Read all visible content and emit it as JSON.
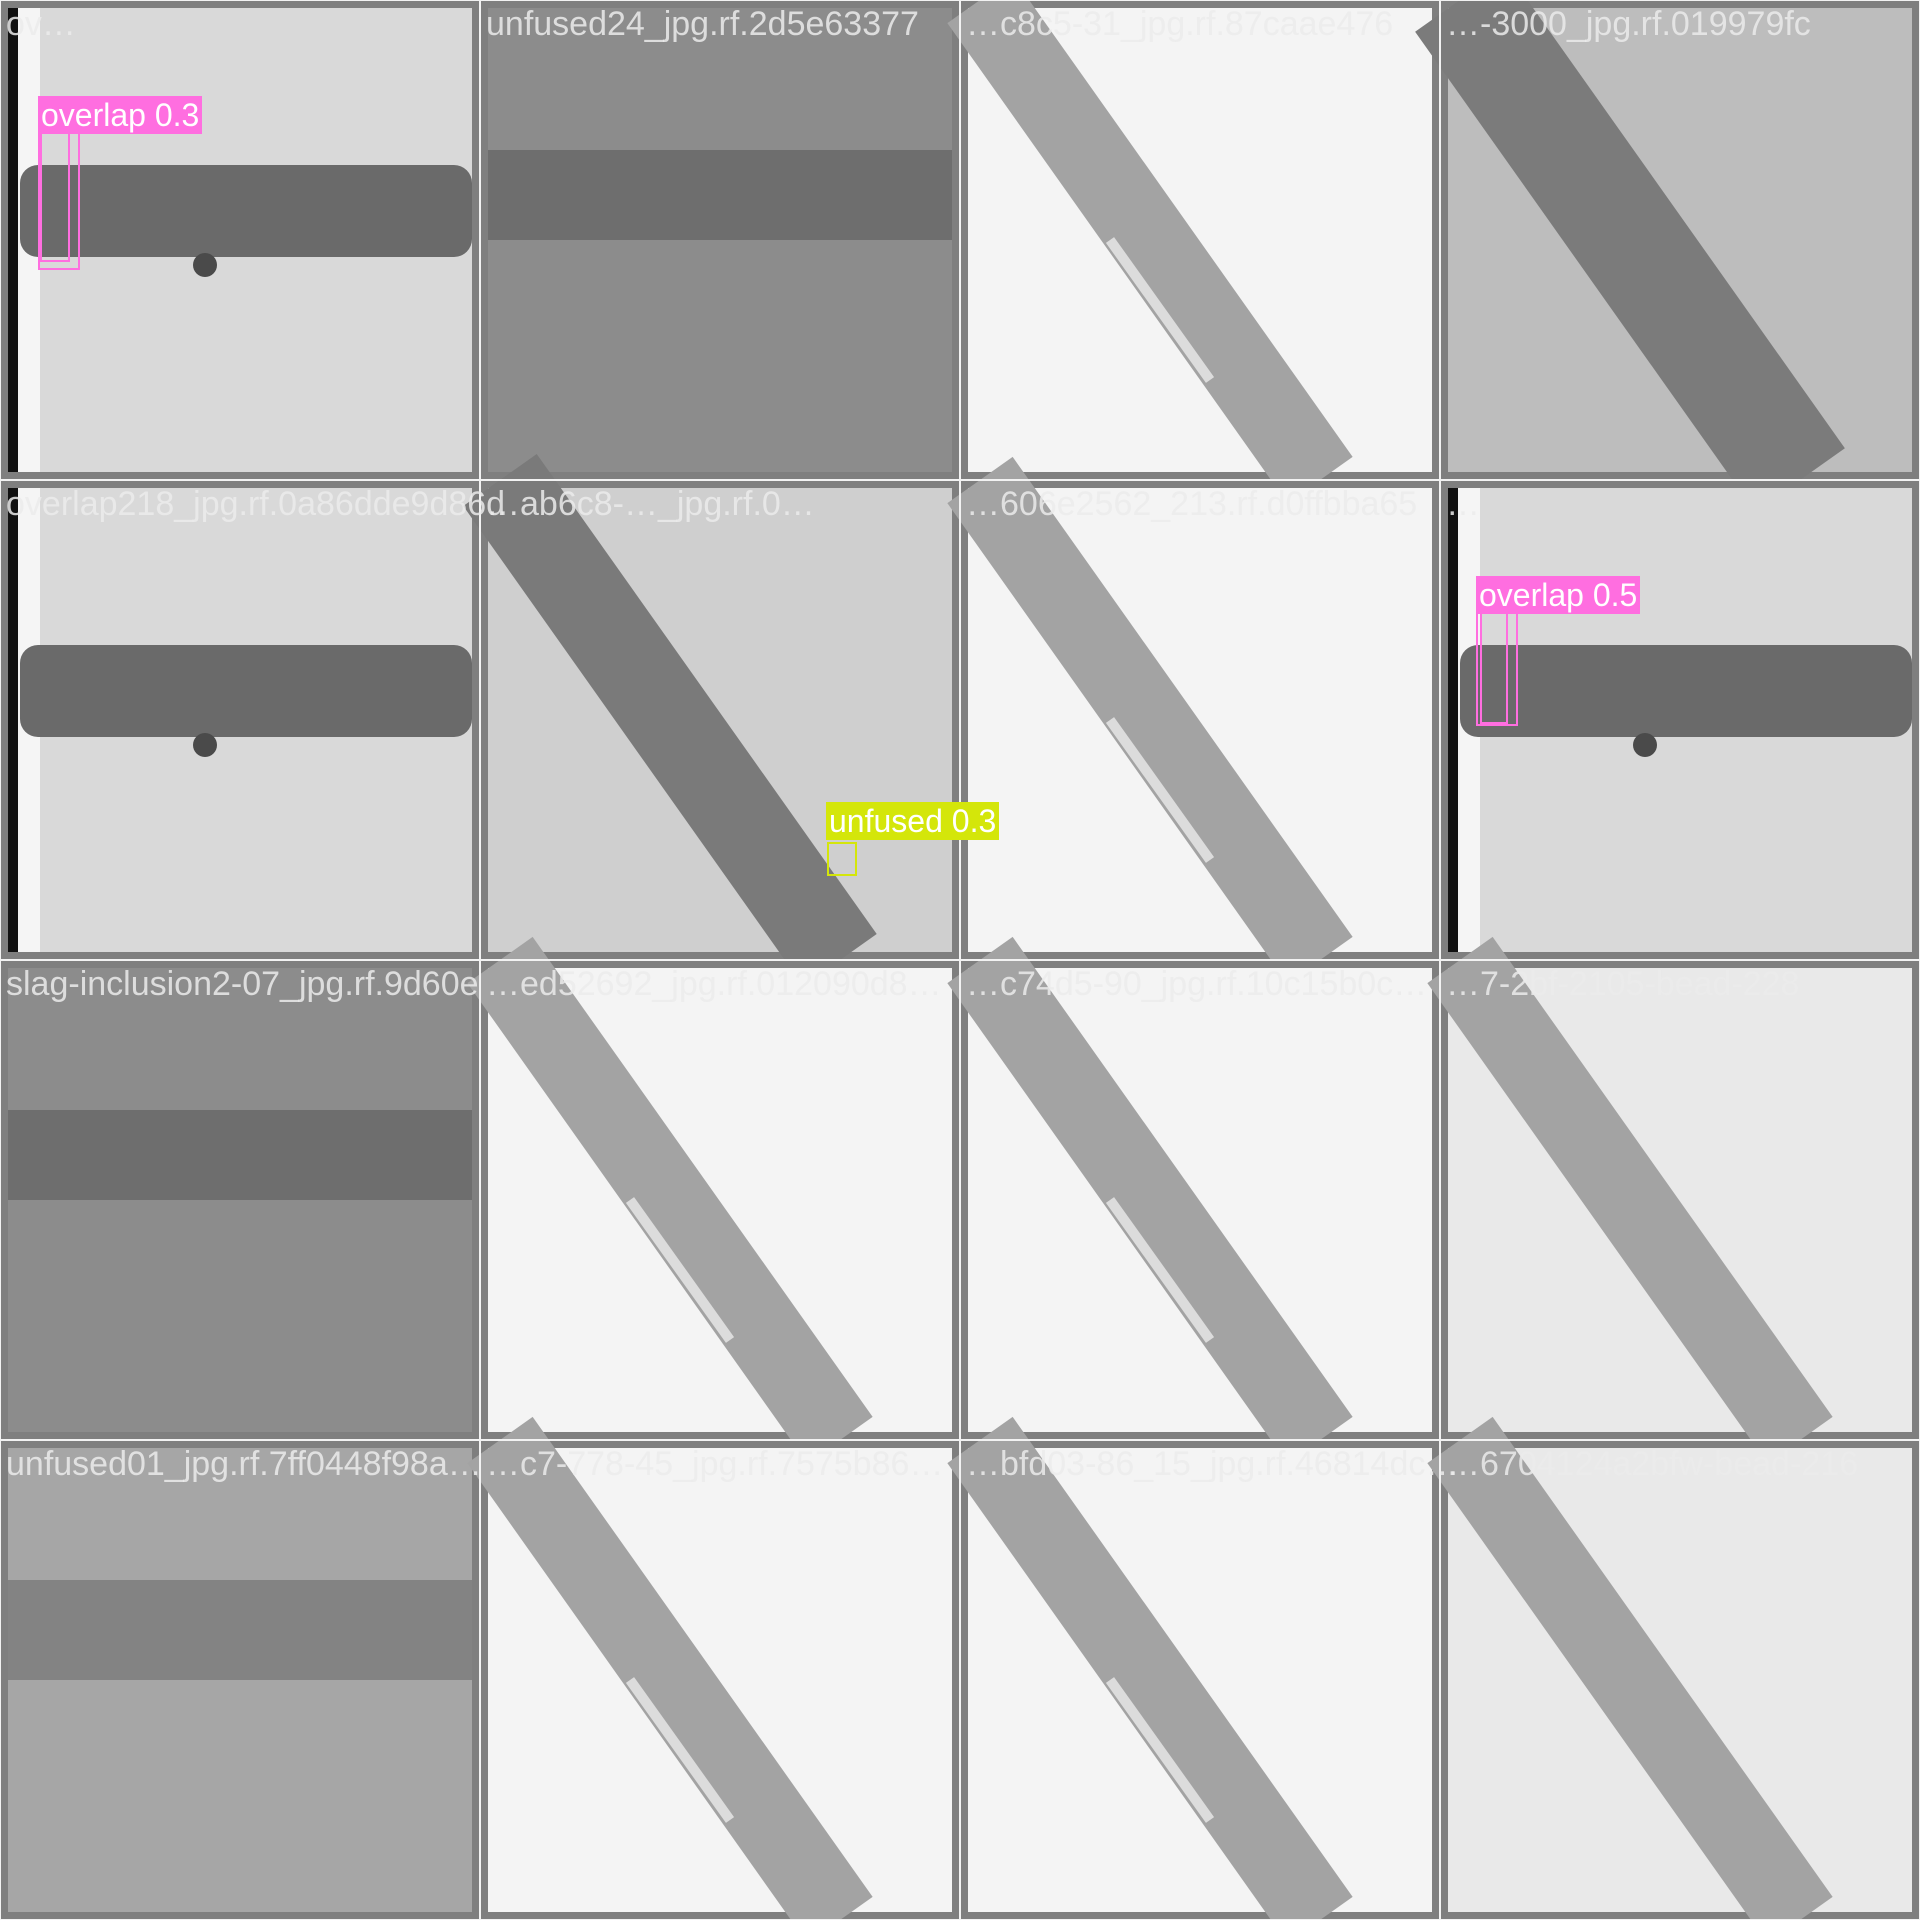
{
  "colors": {
    "overlap": "#ff6ee0",
    "unfused": "#d4e60a",
    "frame": "#808080"
  },
  "tiles": [
    {
      "id": "r1c1",
      "name": "ov…",
      "style": "horizontal-left-edge",
      "detections": [
        {
          "cls": "overlap",
          "label": "overlap 0.3"
        },
        {
          "cls": "overlap",
          "label": ""
        }
      ]
    },
    {
      "id": "r1c2",
      "name": "unfused24_jpg.rf.2d5e63377",
      "style": "horizontal-dark",
      "detections": []
    },
    {
      "id": "r1c3",
      "name": "…c8c5-31_jpg.rf.87caae476",
      "style": "diag-light",
      "detections": []
    },
    {
      "id": "r1c4",
      "name": "…-3000_jpg.rf.019979fc",
      "style": "diag-mid",
      "detections": []
    },
    {
      "id": "r2c1",
      "name": "overlap218_jpg.rf.0a86dde9d86d",
      "style": "horizontal-left-edge",
      "detections": []
    },
    {
      "id": "r2c2",
      "name": "…ab6c8-…_jpg.rf.0…",
      "style": "diag-thick",
      "detections": [
        {
          "cls": "unfused",
          "label": "unfused 0.3"
        }
      ]
    },
    {
      "id": "r2c3",
      "name": "…606e2562_213.rf.d0ffbba65",
      "style": "diag-light",
      "detections": []
    },
    {
      "id": "r2c4",
      "name": "…",
      "style": "horizontal-left-edge",
      "detections": [
        {
          "cls": "overlap",
          "label": "overlap 0.5"
        },
        {
          "cls": "overlap",
          "label": ""
        }
      ]
    },
    {
      "id": "r3c1",
      "name": "slag-inclusion2-07_jpg.rf.9d60e",
      "style": "horizontal-dark",
      "detections": []
    },
    {
      "id": "r3c2",
      "name": "…ed52692_jpg.rf.012090d8…",
      "style": "diag-light",
      "detections": []
    },
    {
      "id": "r3c3",
      "name": "…c74d5-90_jpg.rf.10c15b0c…",
      "style": "diag-light",
      "detections": []
    },
    {
      "id": "r3c4",
      "name": "…7-2bf-2105-bead-228",
      "style": "diag-bead",
      "detections": []
    },
    {
      "id": "r4c1",
      "name": "unfused01_jpg.rf.7ff0448f98a…",
      "style": "horizontal-medium",
      "detections": []
    },
    {
      "id": "r4c2",
      "name": "…c7-778-45_jpg.rf.7575b86…",
      "style": "diag-light",
      "detections": []
    },
    {
      "id": "r4c3",
      "name": "…bfd03-86_15_jpg.rf.46814dc…",
      "style": "diag-light",
      "detections": []
    },
    {
      "id": "r4c4",
      "name": "…6704124a2bfw-bead-216",
      "style": "diag-bead",
      "detections": []
    }
  ]
}
